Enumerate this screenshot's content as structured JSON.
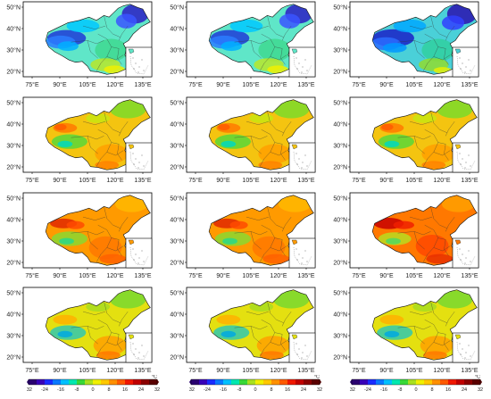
{
  "figure": {
    "lat_labels": [
      "50°N",
      "40°N",
      "30°N",
      "20°N"
    ],
    "lon_labels": [
      "75°E",
      "90°E",
      "105°E",
      "120°E",
      "135°E"
    ],
    "panels": [
      {
        "id": "r1c1",
        "scheme": "winter"
      },
      {
        "id": "r1c2",
        "scheme": "winter"
      },
      {
        "id": "r1c3",
        "scheme": "winter_cold"
      },
      {
        "id": "r2c1",
        "scheme": "spring"
      },
      {
        "id": "r2c2",
        "scheme": "spring"
      },
      {
        "id": "r2c3",
        "scheme": "spring"
      },
      {
        "id": "r3c1",
        "scheme": "summer"
      },
      {
        "id": "r3c2",
        "scheme": "summer"
      },
      {
        "id": "r3c3",
        "scheme": "summer_hot"
      },
      {
        "id": "r4c1",
        "scheme": "autumn"
      },
      {
        "id": "r4c2",
        "scheme": "autumn"
      },
      {
        "id": "r4c3",
        "scheme": "autumn"
      }
    ]
  },
  "colorbar": {
    "unit": "°C",
    "tick_labels": [
      "-32",
      "-24",
      "-16",
      "-8",
      "0",
      "8",
      "16",
      "24",
      "32"
    ],
    "colors": [
      "#2a0070",
      "#3800b8",
      "#1a2cff",
      "#0a78ff",
      "#00c0ff",
      "#00e8b0",
      "#38d838",
      "#a8e020",
      "#f0f000",
      "#ffc800",
      "#ff9000",
      "#ff5a00",
      "#f01800",
      "#c00000",
      "#8a0000",
      "#5a0000"
    ]
  }
}
